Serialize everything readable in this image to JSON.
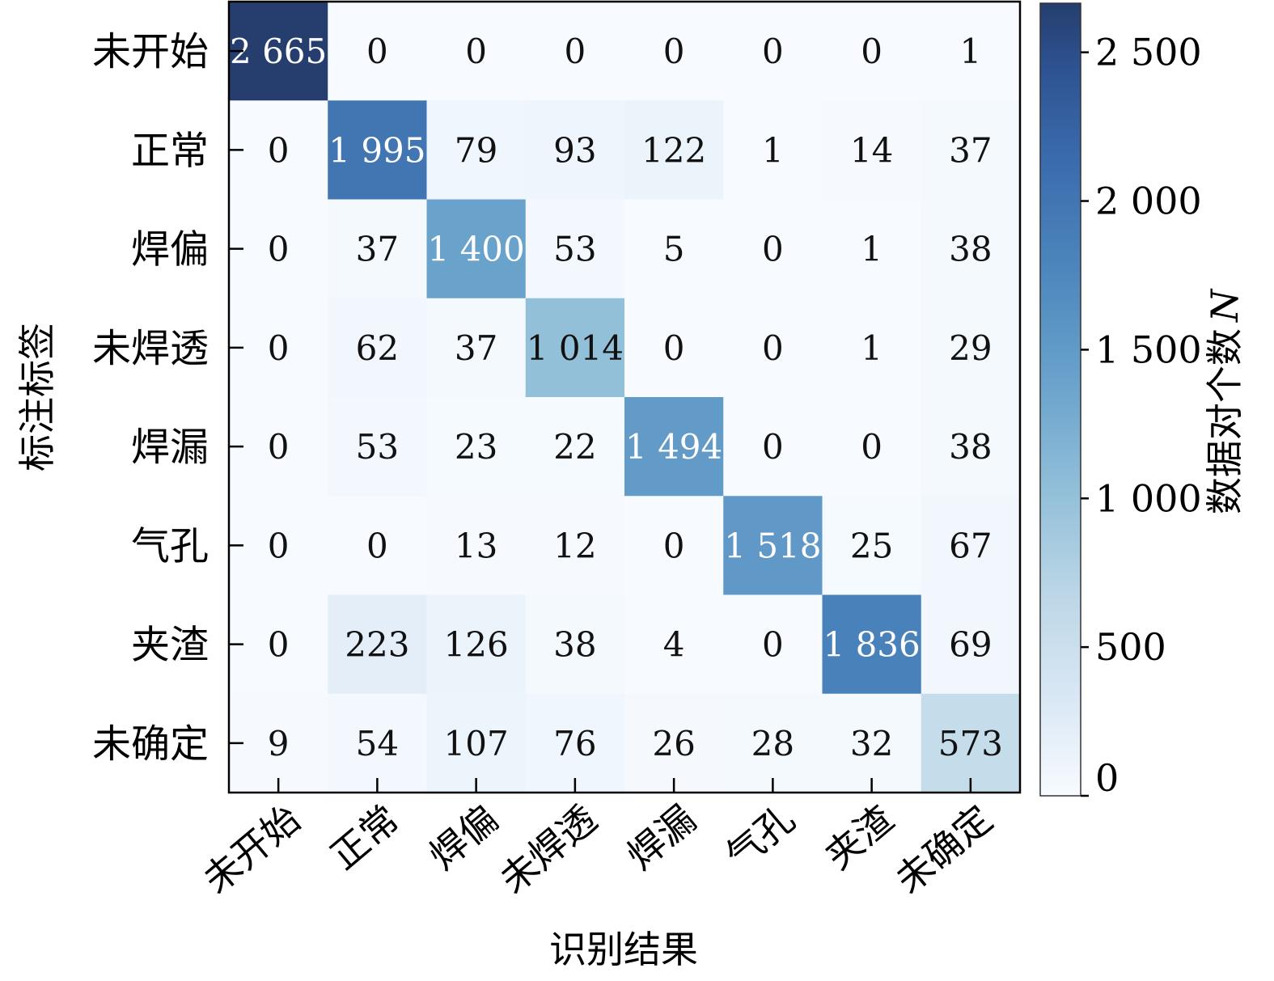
{
  "chart_data": {
    "type": "heatmap",
    "xlabel": "识别结果",
    "ylabel": "标注标签",
    "x_categories": [
      "未开始",
      "正常",
      "焊偏",
      "未焊透",
      "焊漏",
      "气孔",
      "夹渣",
      "未确定"
    ],
    "y_categories": [
      "未开始",
      "正常",
      "焊偏",
      "未焊透",
      "焊漏",
      "气孔",
      "夹渣",
      "未确定"
    ],
    "values": [
      [
        2665,
        0,
        0,
        0,
        0,
        0,
        0,
        1
      ],
      [
        0,
        1995,
        79,
        93,
        122,
        1,
        14,
        37
      ],
      [
        0,
        37,
        1400,
        53,
        5,
        0,
        1,
        38
      ],
      [
        0,
        62,
        37,
        1014,
        0,
        0,
        1,
        29
      ],
      [
        0,
        53,
        23,
        22,
        1494,
        0,
        0,
        38
      ],
      [
        0,
        0,
        13,
        12,
        0,
        1518,
        25,
        67
      ],
      [
        0,
        223,
        126,
        38,
        4,
        0,
        1836,
        69
      ],
      [
        9,
        54,
        107,
        76,
        26,
        28,
        32,
        573
      ]
    ],
    "cell_labels": [
      [
        "2 665",
        "0",
        "0",
        "0",
        "0",
        "0",
        "0",
        "1"
      ],
      [
        "0",
        "1 995",
        "79",
        "93",
        "122",
        "1",
        "14",
        "37"
      ],
      [
        "0",
        "37",
        "1 400",
        "53",
        "5",
        "0",
        "1",
        "38"
      ],
      [
        "0",
        "62",
        "37",
        "1 014",
        "0",
        "0",
        "1",
        "29"
      ],
      [
        "0",
        "53",
        "23",
        "22",
        "1 494",
        "0",
        "0",
        "38"
      ],
      [
        "0",
        "0",
        "13",
        "12",
        "0",
        "1 518",
        "25",
        "67"
      ],
      [
        "0",
        "223",
        "126",
        "38",
        "4",
        "0",
        "1 836",
        "69"
      ],
      [
        "9",
        "54",
        "107",
        "76",
        "26",
        "28",
        "32",
        "573"
      ]
    ],
    "colorbar": {
      "label_prefix": "数据对个数",
      "label_symbol": "N",
      "range": [
        0,
        2665
      ],
      "ticks": [
        0,
        500,
        1000,
        1500,
        2000,
        2500
      ],
      "tick_labels": [
        "0",
        "500",
        "1 000",
        "1 500",
        "2 000",
        "2 500"
      ],
      "colormap": "Blues",
      "color_low": "#f7fbff",
      "color_high": "#253e6e"
    }
  }
}
